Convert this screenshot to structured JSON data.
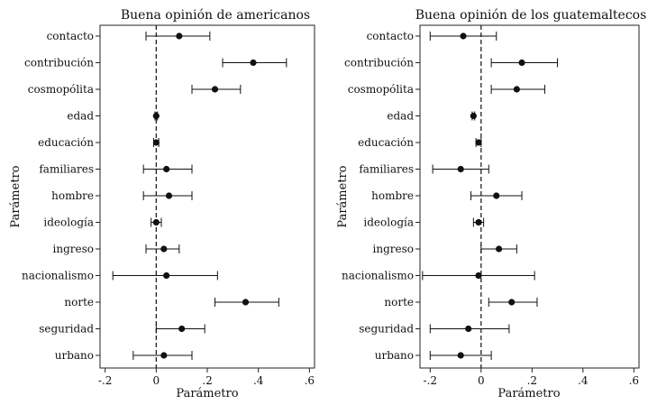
{
  "chart_data": [
    {
      "type": "coefficient-plot",
      "title": "Buena opinión de americanos",
      "xlabel": "Parámetro",
      "ylabel": "Parámetro",
      "xlim": [
        -0.22,
        0.62
      ],
      "xticks": [
        -0.2,
        0,
        0.2,
        0.4,
        0.6
      ],
      "xtick_labels": [
        "-.2",
        "0",
        ".2",
        ".4",
        ".6"
      ],
      "reference_line": 0,
      "categories": [
        "contacto",
        "contribución",
        "cosmopólita",
        "edad",
        "educación",
        "familiares",
        "hombre",
        "ideología",
        "ingreso",
        "nacionalismo",
        "norte",
        "seguridad",
        "urbano"
      ],
      "estimates": [
        0.09,
        0.38,
        0.23,
        0.0,
        0.0,
        0.04,
        0.05,
        0.0,
        0.03,
        0.04,
        0.35,
        0.1,
        0.03
      ],
      "ci_low": [
        -0.04,
        0.26,
        0.14,
        -0.005,
        -0.01,
        -0.05,
        -0.05,
        -0.02,
        -0.04,
        -0.17,
        0.23,
        0.0,
        -0.09
      ],
      "ci_high": [
        0.21,
        0.51,
        0.33,
        0.005,
        0.01,
        0.14,
        0.14,
        0.02,
        0.09,
        0.24,
        0.48,
        0.19,
        0.14
      ]
    },
    {
      "type": "coefficient-plot",
      "title": "Buena opinión de los guatemaltecos",
      "xlabel": "Parámetro",
      "ylabel": "Parámetro",
      "xlim": [
        -0.24,
        0.62
      ],
      "xticks": [
        -0.2,
        0,
        0.2,
        0.4,
        0.6
      ],
      "xtick_labels": [
        "-.2",
        "0",
        ".2",
        ".4",
        ".6"
      ],
      "reference_line": 0,
      "categories": [
        "contacto",
        "contribución",
        "cosmopólita",
        "edad",
        "educación",
        "familiares",
        "hombre",
        "ideología",
        "ingreso",
        "nacionalismo",
        "norte",
        "seguridad",
        "urbano"
      ],
      "estimates": [
        -0.07,
        0.16,
        0.14,
        -0.03,
        -0.01,
        -0.08,
        0.06,
        -0.01,
        0.07,
        -0.01,
        0.12,
        -0.05,
        -0.08
      ],
      "ci_low": [
        -0.2,
        0.04,
        0.04,
        -0.035,
        -0.02,
        -0.19,
        -0.04,
        -0.03,
        0.0,
        -0.23,
        0.03,
        -0.2,
        -0.2
      ],
      "ci_high": [
        0.06,
        0.3,
        0.25,
        -0.025,
        0.0,
        0.03,
        0.16,
        0.01,
        0.14,
        0.21,
        0.22,
        0.11,
        0.04
      ]
    }
  ]
}
